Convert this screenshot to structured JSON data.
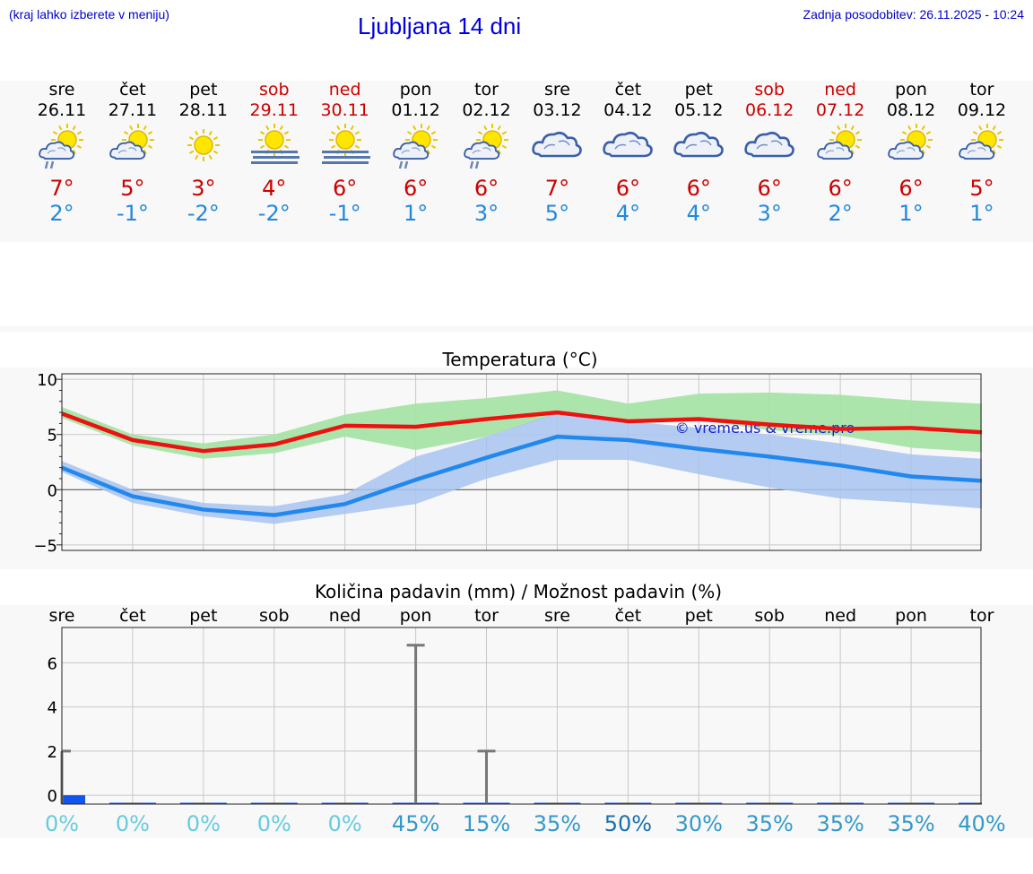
{
  "header": {
    "left_note": "(kraj lahko izberete v meniju)",
    "title": "Ljubljana 14 dni",
    "updated": "Zadnja posodobitev: 26.11.2025 - 10:24"
  },
  "days": [
    {
      "name": "sre",
      "date": "26.11",
      "weekend": false,
      "icon": "sun-cloud-rain-icon",
      "tmax": "7°",
      "tmin": "2°"
    },
    {
      "name": "čet",
      "date": "27.11",
      "weekend": false,
      "icon": "sun-cloud-icon",
      "tmax": "5°",
      "tmin": "-1°"
    },
    {
      "name": "pet",
      "date": "28.11",
      "weekend": false,
      "icon": "sun-icon",
      "tmax": "3°",
      "tmin": "-2°"
    },
    {
      "name": "sob",
      "date": "29.11",
      "weekend": true,
      "icon": "sun-fog-icon",
      "tmax": "4°",
      "tmin": "-2°"
    },
    {
      "name": "ned",
      "date": "30.11",
      "weekend": true,
      "icon": "sun-fog-icon",
      "tmax": "6°",
      "tmin": "-1°"
    },
    {
      "name": "pon",
      "date": "01.12",
      "weekend": false,
      "icon": "sun-cloud-rain-icon",
      "tmax": "6°",
      "tmin": "1°"
    },
    {
      "name": "tor",
      "date": "02.12",
      "weekend": false,
      "icon": "sun-cloud-rain-icon",
      "tmax": "6°",
      "tmin": "3°"
    },
    {
      "name": "sre",
      "date": "03.12",
      "weekend": false,
      "icon": "cloud-icon",
      "tmax": "7°",
      "tmin": "5°"
    },
    {
      "name": "čet",
      "date": "04.12",
      "weekend": false,
      "icon": "cloud-icon",
      "tmax": "6°",
      "tmin": "4°"
    },
    {
      "name": "pet",
      "date": "05.12",
      "weekend": false,
      "icon": "cloud-icon",
      "tmax": "6°",
      "tmin": "4°"
    },
    {
      "name": "sob",
      "date": "06.12",
      "weekend": true,
      "icon": "cloud-icon",
      "tmax": "6°",
      "tmin": "3°"
    },
    {
      "name": "ned",
      "date": "07.12",
      "weekend": true,
      "icon": "sun-cloud-icon",
      "tmax": "6°",
      "tmin": "2°"
    },
    {
      "name": "pon",
      "date": "08.12",
      "weekend": false,
      "icon": "sun-cloud-icon",
      "tmax": "6°",
      "tmin": "1°"
    },
    {
      "name": "tor",
      "date": "09.12",
      "weekend": false,
      "icon": "sun-cloud-icon",
      "tmax": "5°",
      "tmin": "1°"
    }
  ],
  "colors": {
    "max_line": "#ee1111",
    "min_line": "#2288ee",
    "max_band": "#a8e4a8",
    "min_band": "#a8c4f0",
    "weekend": "#cc0000",
    "precip_bar": "#1155ee"
  },
  "chart_data": [
    {
      "type": "line",
      "title": "Temperatura (°C)",
      "watermark": "© vreme.us & vreme.pro",
      "ylim": [
        -5.5,
        10.5
      ],
      "yticks": [
        "−5",
        "0",
        "5",
        "10"
      ],
      "x": [
        0,
        1,
        2,
        3,
        4,
        5,
        6,
        7,
        8,
        9,
        10,
        11,
        12,
        13
      ],
      "series": [
        {
          "values": [
            6.9,
            4.5,
            3.5,
            4.1,
            5.8,
            5.7,
            6.4,
            7.0,
            6.2,
            6.4,
            5.9,
            5.5,
            5.6,
            5.2
          ],
          "band_low": [
            6.5,
            4.0,
            2.8,
            3.3,
            4.8,
            3.6,
            4.8,
            6.8,
            6.3,
            6.3,
            5.4,
            4.9,
            3.8,
            3.4
          ],
          "band_high": [
            7.5,
            5.0,
            4.2,
            5.0,
            6.8,
            7.8,
            8.3,
            9.0,
            7.8,
            8.7,
            8.8,
            8.6,
            8.1,
            7.8
          ]
        },
        {
          "values": [
            2.0,
            -0.6,
            -1.8,
            -2.3,
            -1.3,
            0.9,
            2.9,
            4.8,
            4.5,
            3.7,
            3.0,
            2.2,
            1.2,
            0.8
          ],
          "band_low": [
            1.6,
            -1.2,
            -2.4,
            -3.1,
            -2.2,
            -1.3,
            1.0,
            2.7,
            2.7,
            1.4,
            0.2,
            -0.8,
            -1.2,
            -1.7
          ],
          "band_high": [
            2.6,
            0.0,
            -1.2,
            -1.5,
            -0.4,
            3.0,
            4.8,
            7.0,
            6.2,
            5.6,
            5.0,
            4.2,
            3.2,
            2.8
          ]
        }
      ]
    },
    {
      "type": "bar",
      "title": "Količina padavin (mm) / Možnost padavin (%)",
      "ylim": [
        -0.4,
        7.6
      ],
      "yticks": [
        "0",
        "2",
        "4",
        "6"
      ],
      "categories": [
        "sre",
        "čet",
        "pet",
        "sob",
        "ned",
        "pon",
        "tor",
        "sre",
        "čet",
        "pet",
        "sob",
        "ned",
        "pon",
        "tor"
      ],
      "amounts": [
        0.4,
        0,
        0,
        0,
        0,
        0,
        0,
        0,
        0,
        0,
        0,
        0,
        0,
        0
      ],
      "range_high": [
        2.0,
        0,
        0,
        0,
        0,
        6.8,
        2.0,
        0,
        0,
        0,
        0,
        0,
        0,
        0
      ],
      "probability": [
        "0%",
        "0%",
        "0%",
        "0%",
        "0%",
        "45%",
        "15%",
        "35%",
        "50%",
        "30%",
        "35%",
        "35%",
        "35%",
        "40%"
      ],
      "probability_colors": [
        "#66ccdd",
        "#66ccdd",
        "#66ccdd",
        "#66ccdd",
        "#66ccdd",
        "#3399cc",
        "#3399cc",
        "#3399cc",
        "#1a6fb0",
        "#3399cc",
        "#3399cc",
        "#3399cc",
        "#3399cc",
        "#3399cc"
      ]
    }
  ]
}
